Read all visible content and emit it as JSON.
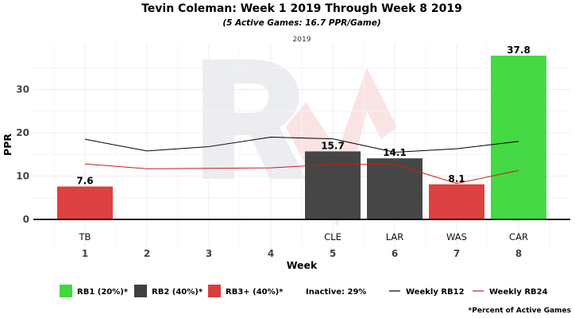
{
  "chart_data": {
    "type": "bar",
    "title": "Tevin Coleman: Week 1 2019 Through Week 8 2019",
    "subtitle": "(5 Active Games: 16.7 PPR/Game)",
    "season_label": "2019",
    "xlabel": "Week",
    "ylabel": "PPR",
    "ylim": [
      -5,
      40
    ],
    "yticks": [
      0,
      10,
      20,
      30
    ],
    "grid": true,
    "weeks": [
      1,
      2,
      3,
      4,
      5,
      6,
      7,
      8
    ],
    "opponents": [
      "TB",
      "",
      "",
      "",
      "CLE",
      "LAR",
      "WAS",
      "CAR"
    ],
    "bars": [
      {
        "week": 1,
        "value": 7.6,
        "label": "7.6",
        "tier": "RB3+"
      },
      {
        "week": 5,
        "value": 15.7,
        "label": "15.7",
        "tier": "RB2"
      },
      {
        "week": 6,
        "value": 14.1,
        "label": "14.1",
        "tier": "RB2"
      },
      {
        "week": 7,
        "value": 8.1,
        "label": "8.1",
        "tier": "RB3+"
      },
      {
        "week": 8,
        "value": 37.8,
        "label": "37.8",
        "tier": "RB1"
      }
    ],
    "tier_colors": {
      "RB1": "#3fd83f",
      "RB2": "#404040",
      "RB3+": "#dc3b3b"
    },
    "series": [
      {
        "name": "Weekly RB12",
        "color": "#000000",
        "values": [
          18.5,
          15.8,
          16.8,
          19.0,
          18.6,
          15.5,
          16.3,
          18.0
        ]
      },
      {
        "name": "Weekly RB24",
        "color": "#c0201c",
        "values": [
          12.8,
          11.7,
          11.8,
          11.9,
          12.7,
          12.7,
          8.3,
          11.3
        ]
      }
    ],
    "legend": [
      {
        "label": "RB1 (20%)*",
        "color": "#3fd83f",
        "kind": "box"
      },
      {
        "label": "RB2 (40%)*",
        "color": "#404040",
        "kind": "box"
      },
      {
        "label": "RB3+ (40%)*",
        "color": "#dc3b3b",
        "kind": "box"
      },
      {
        "label": "Inactive: 29%",
        "kind": "text"
      },
      {
        "label": "Weekly RB12",
        "color": "#000000",
        "kind": "line"
      },
      {
        "label": "Weekly RB24",
        "color": "#c0201c",
        "kind": "line"
      }
    ],
    "footnote": "*Percent of Active Games"
  }
}
